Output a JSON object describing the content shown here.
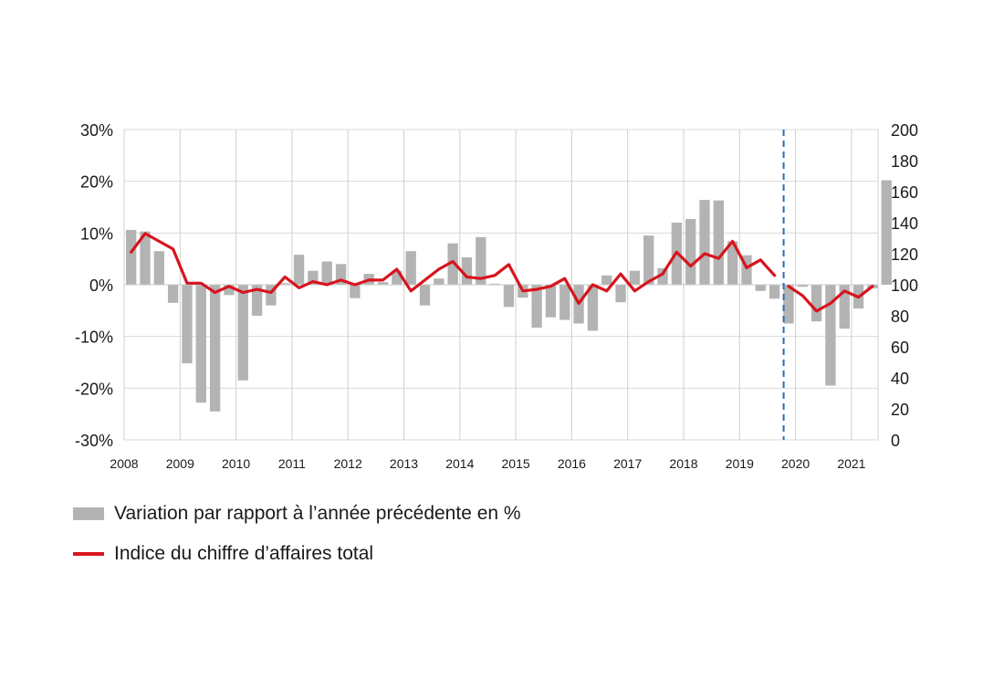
{
  "chart_data": {
    "type": "bar",
    "x_ticks": [
      "2008",
      "2009",
      "2010",
      "2011",
      "2012",
      "2013",
      "2014",
      "2015",
      "2016",
      "2017",
      "2018",
      "2019",
      "2020",
      "2021"
    ],
    "left_axis": {
      "ylim": [
        -30,
        30
      ],
      "ticks": [
        "-30%",
        "-20%",
        "-10%",
        "0%",
        "10%",
        "20%",
        "30%"
      ]
    },
    "right_axis": {
      "ylim": [
        0,
        200
      ],
      "ticks": [
        "0",
        "20",
        "40",
        "60",
        "80",
        "100",
        "120",
        "140",
        "160",
        "180",
        "200"
      ]
    },
    "grid": true,
    "legend_position": "bottom",
    "break_marker": {
      "style": "dashed",
      "color": "#2a6db0"
    },
    "series": [
      {
        "name": "Variation par rapport à l’année précédente en %",
        "kind": "bar",
        "color": "#b3b3b3",
        "axis": "left",
        "values": [
          10.6,
          10.3,
          6.5,
          -3.5,
          -15.2,
          -22.8,
          -24.5,
          -2.0,
          -18.5,
          -6.0,
          -4.0,
          0.3,
          5.8,
          2.7,
          4.5,
          4.0,
          -2.6,
          2.1,
          0.5,
          2.7,
          6.5,
          -4.0,
          1.2,
          8.0,
          5.3,
          9.2,
          0.2,
          -4.3,
          -2.5,
          -8.3,
          -6.3,
          -6.8,
          -7.5,
          -8.9,
          1.8,
          -3.4,
          2.7,
          9.5,
          3.2,
          12.0,
          12.7,
          16.4,
          16.3,
          8.4,
          5.7,
          -1.2,
          -2.7,
          -7.5,
          -0.4,
          -7.1,
          -19.5,
          -8.5,
          -4.6,
          -0.7,
          20.2
        ]
      },
      {
        "name": "Indice du chiffre d’affaires total",
        "kind": "line",
        "color": "#d7141e",
        "axis": "right",
        "x_start": 0.5,
        "segments": [
          [
            121,
            133,
            128,
            123,
            101,
            101,
            95,
            99,
            95,
            97,
            95,
            105,
            98,
            102,
            100,
            103,
            100,
            103,
            103,
            110,
            96,
            103,
            110,
            115,
            105,
            104,
            106,
            113,
            96,
            97,
            99,
            104,
            88,
            100,
            96,
            107,
            96,
            102,
            107,
            121,
            112,
            120,
            117,
            128,
            111,
            116,
            106
          ],
          [
            99,
            93,
            83,
            88,
            96,
            92,
            99
          ]
        ],
        "gap_after_quarter": 47
      }
    ]
  },
  "legend": {
    "bar_label": "Variation par rapport à l’année précédente en %",
    "line_label": "Indice du chiffre d’affaires total"
  }
}
